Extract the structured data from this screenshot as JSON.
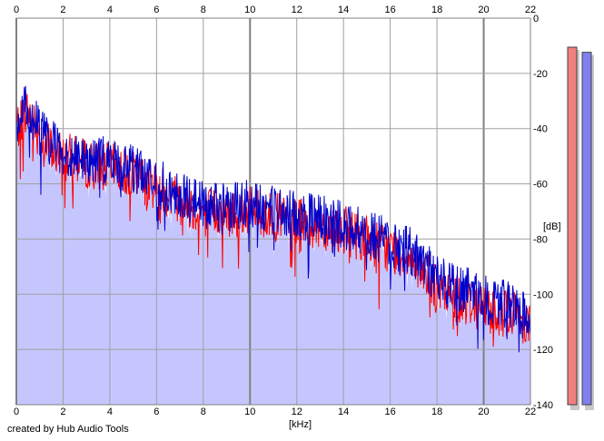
{
  "chart_data": {
    "type": "area",
    "xlabel": "[kHz]",
    "ylabel": "[dB]",
    "xlim": [
      0,
      22
    ],
    "ylim": [
      -140,
      0
    ],
    "x_ticks": [
      0,
      2,
      4,
      6,
      8,
      10,
      12,
      14,
      16,
      18,
      20,
      22
    ],
    "y_ticks": [
      0,
      -20,
      -40,
      -60,
      -80,
      -100,
      -120,
      -140
    ],
    "grid": true,
    "colors": {
      "fill": "#c6c6ff",
      "left_channel": "#ff0000",
      "right_channel": "#0000cc",
      "grid": "#a0a0a0",
      "grid_major": "#808080",
      "meter_left": "#f08080",
      "meter_right": "#8080f0"
    },
    "series": [
      {
        "channel": "left",
        "color": "#ff0000",
        "x": [
          0,
          0.5,
          1,
          1.5,
          2,
          3,
          4,
          5,
          6,
          7,
          8,
          9,
          10,
          11,
          12,
          13,
          14,
          15,
          16,
          17,
          18,
          19,
          20,
          21,
          22
        ],
        "values": [
          -38,
          -32,
          -40,
          -46,
          -48,
          -51,
          -52,
          -55,
          -59,
          -64,
          -68,
          -69,
          -68,
          -70,
          -72,
          -73,
          -75,
          -78,
          -82,
          -85,
          -97,
          -100,
          -103,
          -105,
          -108
        ]
      },
      {
        "channel": "right",
        "color": "#0000cc",
        "x": [
          0,
          0.5,
          1,
          1.5,
          2,
          3,
          4,
          5,
          6,
          7,
          8,
          9,
          10,
          11,
          12,
          13,
          14,
          15,
          16,
          17,
          18,
          19,
          20,
          21,
          22
        ],
        "values": [
          -36,
          -30,
          -38,
          -44,
          -46,
          -49,
          -50,
          -53,
          -58,
          -62,
          -66,
          -67,
          -65,
          -68,
          -70,
          -71,
          -73,
          -76,
          -80,
          -83,
          -93,
          -96,
          -100,
          -102,
          -105
        ]
      }
    ],
    "meters": [
      {
        "channel": "left",
        "level_db": 0,
        "color": "#f08080"
      },
      {
        "channel": "right",
        "level_db": -2,
        "color": "#8080f0"
      }
    ]
  },
  "footer": {
    "credit": "created by Hub Audio Tools"
  }
}
